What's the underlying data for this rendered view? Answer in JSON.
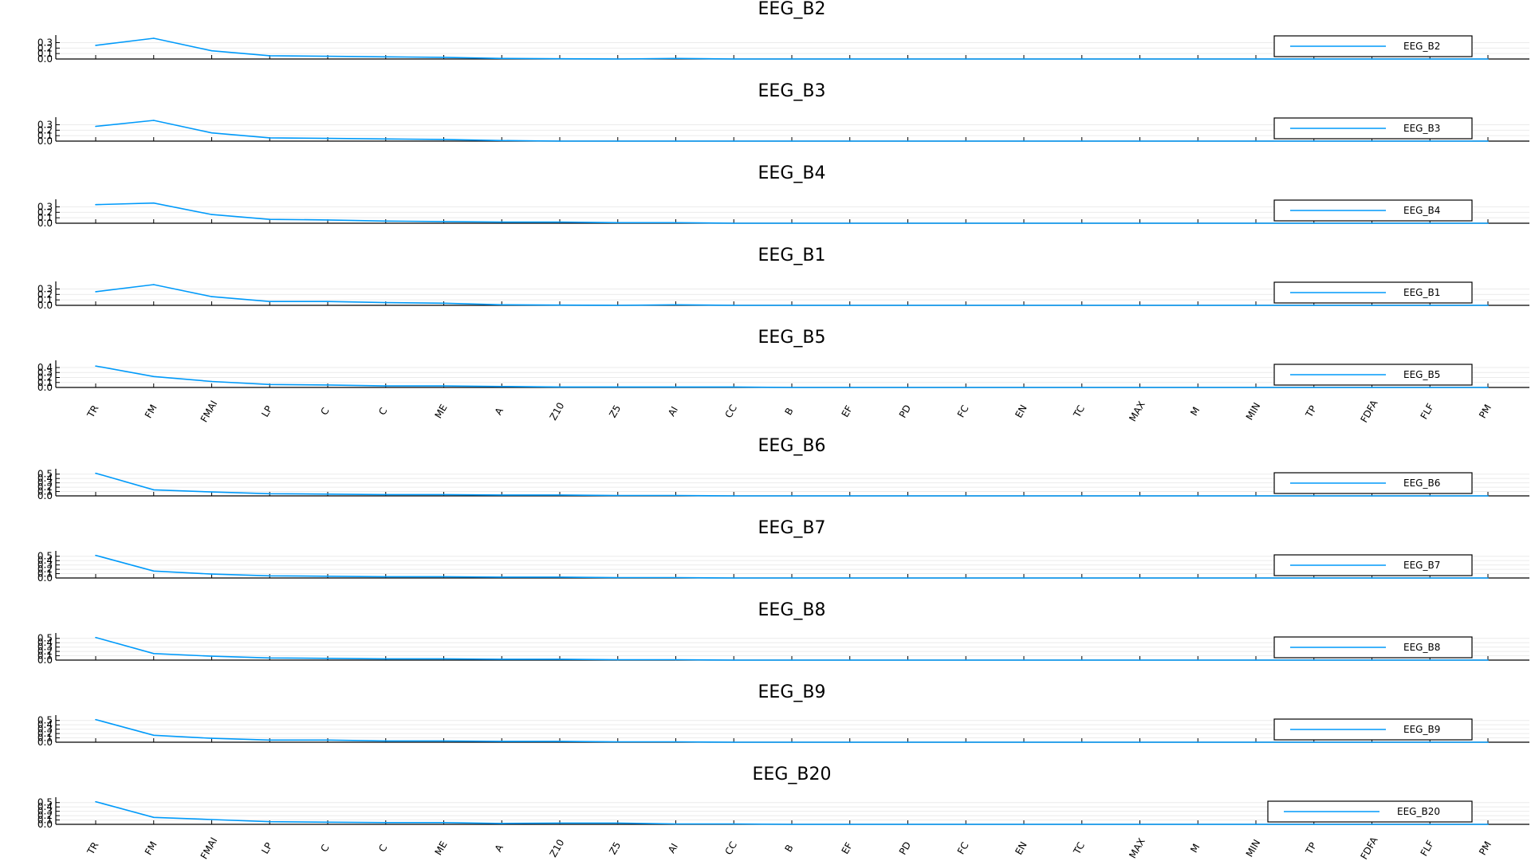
{
  "figure": {
    "line_color": "#009AFA",
    "axis_color": "#000000",
    "grid_color": "#ebebeb"
  },
  "chart_data": [
    {
      "type": "line",
      "title": "EEG_B2",
      "categories": [
        "TR",
        "FM",
        "FMAI",
        "LP",
        "C",
        "C",
        "ME",
        "A",
        "Z10",
        "Z5",
        "AI",
        "CC",
        "B",
        "EF",
        "PD",
        "FC",
        "EN",
        "TC",
        "MAX",
        "M",
        "MIN",
        "TP",
        "FDFA",
        "FLF",
        "PM"
      ],
      "series": [
        {
          "name": "EEG_B2",
          "values": [
            0.25,
            0.38,
            0.15,
            0.06,
            0.05,
            0.04,
            0.03,
            0.01,
            0.005,
            0.0,
            0.01,
            0.0,
            0.0,
            0.0,
            0.0,
            0.0,
            0.0,
            0.0,
            0.0,
            0.0,
            0.0,
            0.0,
            0.0,
            0.0,
            0.0
          ]
        }
      ],
      "ylim": [
        0,
        0.38
      ],
      "yticks": [
        "0.0",
        "0.1",
        "0.2",
        "0.3"
      ],
      "show_xticks": false,
      "legend": "right",
      "grid": true
    },
    {
      "type": "line",
      "title": "EEG_B3",
      "categories": [
        "TR",
        "FM",
        "FMAI",
        "LP",
        "C",
        "C",
        "ME",
        "A",
        "Z10",
        "Z5",
        "AI",
        "CC",
        "B",
        "EF",
        "PD",
        "FC",
        "EN",
        "TC",
        "MAX",
        "M",
        "MIN",
        "TP",
        "FDFA",
        "FLF",
        "PM"
      ],
      "series": [
        {
          "name": "EEG_B3",
          "values": [
            0.27,
            0.38,
            0.15,
            0.06,
            0.05,
            0.04,
            0.03,
            0.01,
            0.0,
            0.0,
            0.0,
            0.0,
            0.0,
            0.0,
            0.0,
            0.0,
            0.0,
            0.0,
            0.0,
            0.0,
            0.0,
            0.0,
            0.0,
            0.0,
            0.0
          ]
        }
      ],
      "ylim": [
        0,
        0.38
      ],
      "yticks": [
        "0.0",
        "0.1",
        "0.2",
        "0.3"
      ],
      "show_xticks": false,
      "legend": "right",
      "grid": true
    },
    {
      "type": "line",
      "title": "EEG_B4",
      "categories": [
        "TR",
        "FM",
        "FMAI",
        "LP",
        "C",
        "C",
        "ME",
        "A",
        "Z10",
        "Z5",
        "AI",
        "CC",
        "B",
        "EF",
        "PD",
        "FC",
        "EN",
        "TC",
        "MAX",
        "M",
        "MIN",
        "TP",
        "FDFA",
        "FLF",
        "PM"
      ],
      "series": [
        {
          "name": "EEG_B4",
          "values": [
            0.34,
            0.37,
            0.16,
            0.07,
            0.06,
            0.04,
            0.03,
            0.02,
            0.02,
            0.01,
            0.01,
            0.0,
            0.0,
            0.0,
            0.0,
            0.0,
            0.0,
            0.0,
            0.0,
            0.0,
            0.0,
            0.0,
            0.0,
            0.0,
            0.0
          ]
        }
      ],
      "ylim": [
        0,
        0.38
      ],
      "yticks": [
        "0.0",
        "0.1",
        "0.2",
        "0.3"
      ],
      "show_xticks": false,
      "legend": "right",
      "grid": true
    },
    {
      "type": "line",
      "title": "EEG_B1",
      "categories": [
        "TR",
        "FM",
        "FMAI",
        "LP",
        "C",
        "C",
        "ME",
        "A",
        "Z10",
        "Z5",
        "AI",
        "CC",
        "B",
        "EF",
        "PD",
        "FC",
        "EN",
        "TC",
        "MAX",
        "M",
        "MIN",
        "TP",
        "FDFA",
        "FLF",
        "PM"
      ],
      "series": [
        {
          "name": "EEG_B1",
          "values": [
            0.25,
            0.38,
            0.16,
            0.07,
            0.07,
            0.05,
            0.04,
            0.01,
            0.005,
            0.0,
            0.01,
            0.0,
            0.0,
            0.0,
            0.0,
            0.0,
            0.0,
            0.0,
            0.0,
            0.0,
            0.0,
            0.0,
            0.0,
            0.0,
            0.0
          ]
        }
      ],
      "ylim": [
        0,
        0.38
      ],
      "yticks": [
        "0.0",
        "0.1",
        "0.2",
        "0.3"
      ],
      "show_xticks": false,
      "legend": "right",
      "grid": true
    },
    {
      "type": "line",
      "title": "EEG_B5",
      "categories": [
        "TR",
        "FM",
        "FMAI",
        "LP",
        "C",
        "C",
        "ME",
        "A",
        "Z10",
        "Z5",
        "AI",
        "CC",
        "B",
        "EF",
        "PD",
        "FC",
        "EN",
        "TC",
        "MAX",
        "M",
        "MIN",
        "TP",
        "FDFA",
        "FLF",
        "PM"
      ],
      "series": [
        {
          "name": "EEG_B5",
          "values": [
            0.43,
            0.22,
            0.12,
            0.06,
            0.05,
            0.03,
            0.03,
            0.02,
            0.01,
            0.01,
            0.01,
            0.01,
            0.0,
            0.0,
            0.0,
            0.0,
            0.0,
            0.0,
            0.0,
            0.0,
            0.0,
            0.0,
            0.0,
            0.0,
            0.0
          ]
        }
      ],
      "ylim": [
        0,
        0.48
      ],
      "yticks": [
        "0.0",
        "0.1",
        "0.2",
        "0.3",
        "0.4"
      ],
      "show_xticks": true,
      "legend": "right",
      "grid": true
    },
    {
      "type": "line",
      "title": "EEG_B6",
      "categories": [
        "TR",
        "FM",
        "FMAI",
        "LP",
        "C",
        "C",
        "ME",
        "A",
        "Z10",
        "Z5",
        "AI",
        "CC",
        "B",
        "EF",
        "PD",
        "FC",
        "EN",
        "TC",
        "MAX",
        "M",
        "MIN",
        "TP",
        "FDFA",
        "FLF",
        "PM"
      ],
      "series": [
        {
          "name": "EEG_B6",
          "values": [
            0.52,
            0.14,
            0.09,
            0.05,
            0.04,
            0.03,
            0.03,
            0.02,
            0.02,
            0.01,
            0.01,
            0.0,
            0.0,
            0.0,
            0.0,
            0.0,
            0.0,
            0.0,
            0.0,
            0.0,
            0.0,
            0.0,
            0.0,
            0.0,
            0.0
          ]
        }
      ],
      "ylim": [
        0,
        0.55
      ],
      "yticks": [
        "0.0",
        "0.1",
        "0.2",
        "0.3",
        "0.4",
        "0.5"
      ],
      "show_xticks": false,
      "legend": "right",
      "grid": true
    },
    {
      "type": "line",
      "title": "EEG_B7",
      "categories": [
        "TR",
        "FM",
        "FMAI",
        "LP",
        "C",
        "C",
        "ME",
        "A",
        "Z10",
        "Z5",
        "AI",
        "CC",
        "B",
        "EF",
        "PD",
        "FC",
        "EN",
        "TC",
        "MAX",
        "M",
        "MIN",
        "TP",
        "FDFA",
        "FLF",
        "PM"
      ],
      "series": [
        {
          "name": "EEG_B7",
          "values": [
            0.52,
            0.16,
            0.09,
            0.05,
            0.04,
            0.03,
            0.03,
            0.02,
            0.02,
            0.01,
            0.01,
            0.0,
            0.0,
            0.0,
            0.0,
            0.0,
            0.0,
            0.0,
            0.0,
            0.0,
            0.0,
            0.0,
            0.0,
            0.0,
            0.0
          ]
        }
      ],
      "ylim": [
        0,
        0.55
      ],
      "yticks": [
        "0.0",
        "0.1",
        "0.2",
        "0.3",
        "0.4",
        "0.5"
      ],
      "show_xticks": false,
      "legend": "right",
      "grid": true
    },
    {
      "type": "line",
      "title": "EEG_B8",
      "categories": [
        "TR",
        "FM",
        "FMAI",
        "LP",
        "C",
        "C",
        "ME",
        "A",
        "Z10",
        "Z5",
        "AI",
        "CC",
        "B",
        "EF",
        "PD",
        "FC",
        "EN",
        "TC",
        "MAX",
        "M",
        "MIN",
        "TP",
        "FDFA",
        "FLF",
        "PM"
      ],
      "series": [
        {
          "name": "EEG_B8",
          "values": [
            0.52,
            0.15,
            0.09,
            0.05,
            0.04,
            0.03,
            0.03,
            0.02,
            0.02,
            0.01,
            0.01,
            0.0,
            0.0,
            0.0,
            0.0,
            0.0,
            0.0,
            0.0,
            0.0,
            0.0,
            0.0,
            0.0,
            0.0,
            0.0,
            0.0
          ]
        }
      ],
      "ylim": [
        0,
        0.55
      ],
      "yticks": [
        "0.0",
        "0.1",
        "0.2",
        "0.3",
        "0.4",
        "0.5"
      ],
      "show_xticks": false,
      "legend": "right",
      "grid": true
    },
    {
      "type": "line",
      "title": "EEG_B9",
      "categories": [
        "TR",
        "FM",
        "FMAI",
        "LP",
        "C",
        "C",
        "ME",
        "A",
        "Z10",
        "Z5",
        "AI",
        "CC",
        "B",
        "EF",
        "PD",
        "FC",
        "EN",
        "TC",
        "MAX",
        "M",
        "MIN",
        "TP",
        "FDFA",
        "FLF",
        "PM"
      ],
      "series": [
        {
          "name": "EEG_B9",
          "values": [
            0.52,
            0.16,
            0.09,
            0.05,
            0.05,
            0.03,
            0.03,
            0.02,
            0.02,
            0.01,
            0.01,
            0.0,
            0.0,
            0.0,
            0.0,
            0.0,
            0.0,
            0.0,
            0.0,
            0.0,
            0.0,
            0.0,
            0.0,
            0.0,
            0.0
          ]
        }
      ],
      "ylim": [
        0,
        0.55
      ],
      "yticks": [
        "0.0",
        "0.1",
        "0.2",
        "0.3",
        "0.4",
        "0.5"
      ],
      "show_xticks": false,
      "legend": "right",
      "grid": true
    },
    {
      "type": "line",
      "title": "EEG_B20",
      "categories": [
        "TR",
        "FM",
        "FMAI",
        "LP",
        "C",
        "C",
        "ME",
        "A",
        "Z10",
        "Z5",
        "AI",
        "CC",
        "B",
        "EF",
        "PD",
        "FC",
        "EN",
        "TC",
        "MAX",
        "M",
        "MIN",
        "TP",
        "FDFA",
        "FLF",
        "PM"
      ],
      "series": [
        {
          "name": "EEG_B20",
          "values": [
            0.52,
            0.16,
            0.11,
            0.06,
            0.05,
            0.04,
            0.04,
            0.02,
            0.03,
            0.03,
            0.01,
            0.01,
            0.0,
            0.0,
            0.0,
            0.0,
            0.0,
            0.0,
            0.0,
            0.0,
            0.0,
            0.0,
            0.0,
            0.0,
            0.0
          ]
        }
      ],
      "ylim": [
        0,
        0.55
      ],
      "yticks": [
        "0.0",
        "0.1",
        "0.2",
        "0.3",
        "0.4",
        "0.5"
      ],
      "show_xticks": true,
      "legend": "right",
      "grid": true
    }
  ]
}
